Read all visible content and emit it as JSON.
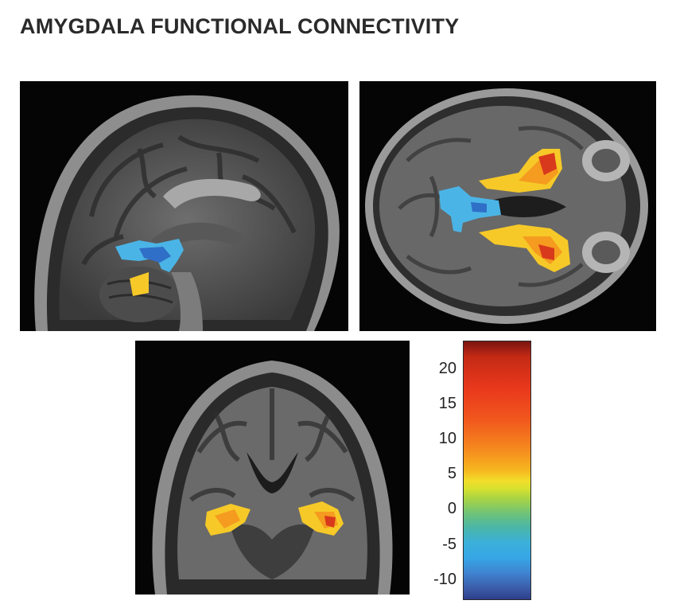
{
  "title": "AMYGDALA FUNCTIONAL CONNECTIVITY",
  "panels": {
    "sagittal": "sagittal-mri",
    "axial": "axial-mri",
    "coronal": "coronal-mri"
  },
  "colorbar": {
    "ticks": [
      "20",
      "15",
      "10",
      "5",
      "0",
      "-5",
      "-10"
    ],
    "max": 24,
    "min": -13
  },
  "colors": {
    "positive_high": "#d8391c",
    "positive_mid": "#f59b1f",
    "positive_low": "#f6c928",
    "negative": "#4bb4e6",
    "negative_dark": "#2f6fc7"
  }
}
